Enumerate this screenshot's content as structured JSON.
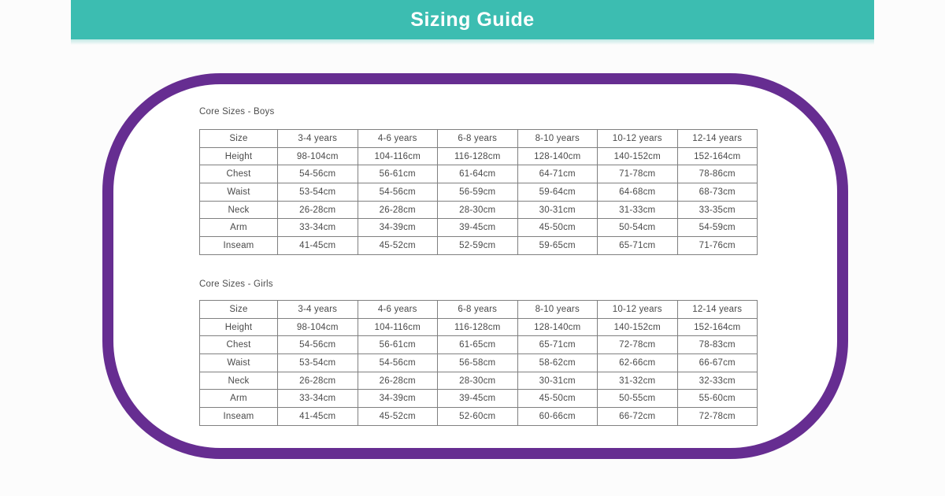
{
  "page": {
    "title": "Sizing Guide"
  },
  "colors": {
    "header_teal": "#3cbdb1",
    "card_border_purple": "#662d91",
    "table_border_gray": "#808080",
    "text_gray": "#4a4a4a",
    "title_text_white": "#ffffff",
    "background": "#fcfcfc"
  },
  "tables": [
    {
      "title": "Core Sizes - Boys",
      "header_label": "Size",
      "columns": [
        "3-4 years",
        "4-6 years",
        "6-8 years",
        "8-10 years",
        "10-12 years",
        "12-14 years"
      ],
      "rows": [
        {
          "label": "Height",
          "values": [
            "98-104cm",
            "104-116cm",
            "116-128cm",
            "128-140cm",
            "140-152cm",
            "152-164cm"
          ]
        },
        {
          "label": "Chest",
          "values": [
            "54-56cm",
            "56-61cm",
            "61-64cm",
            "64-71cm",
            "71-78cm",
            "78-86cm"
          ]
        },
        {
          "label": "Waist",
          "values": [
            "53-54cm",
            "54-56cm",
            "56-59cm",
            "59-64cm",
            "64-68cm",
            "68-73cm"
          ]
        },
        {
          "label": "Neck",
          "values": [
            "26-28cm",
            "26-28cm",
            "28-30cm",
            "30-31cm",
            "31-33cm",
            "33-35cm"
          ]
        },
        {
          "label": "Arm",
          "values": [
            "33-34cm",
            "34-39cm",
            "39-45cm",
            "45-50cm",
            "50-54cm",
            "54-59cm"
          ]
        },
        {
          "label": "Inseam",
          "values": [
            "41-45cm",
            "45-52cm",
            "52-59cm",
            "59-65cm",
            "65-71cm",
            "71-76cm"
          ]
        }
      ]
    },
    {
      "title": "Core Sizes - Girls",
      "header_label": "Size",
      "columns": [
        "3-4 years",
        "4-6 years",
        "6-8 years",
        "8-10 years",
        "10-12 years",
        "12-14 years"
      ],
      "rows": [
        {
          "label": "Height",
          "values": [
            "98-104cm",
            "104-116cm",
            "116-128cm",
            "128-140cm",
            "140-152cm",
            "152-164cm"
          ]
        },
        {
          "label": "Chest",
          "values": [
            "54-56cm",
            "56-61cm",
            "61-65cm",
            "65-71cm",
            "72-78cm",
            "78-83cm"
          ]
        },
        {
          "label": "Waist",
          "values": [
            "53-54cm",
            "54-56cm",
            "56-58cm",
            "58-62cm",
            "62-66cm",
            "66-67cm"
          ]
        },
        {
          "label": "Neck",
          "values": [
            "26-28cm",
            "26-28cm",
            "28-30cm",
            "30-31cm",
            "31-32cm",
            "32-33cm"
          ]
        },
        {
          "label": "Arm",
          "values": [
            "33-34cm",
            "34-39cm",
            "39-45cm",
            "45-50cm",
            "50-55cm",
            "55-60cm"
          ]
        },
        {
          "label": "Inseam",
          "values": [
            "41-45cm",
            "45-52cm",
            "52-60cm",
            "60-66cm",
            "66-72cm",
            "72-78cm"
          ]
        }
      ]
    }
  ]
}
